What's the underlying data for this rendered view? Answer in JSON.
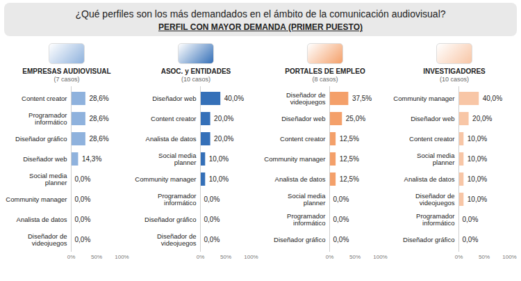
{
  "title": "¿Qué perfiles son los más demandados en el ámbito de la comunicación audiovisual?",
  "subtitle": "PERFIL CON MAYOR DEMANDA (PRIMER PUESTO)",
  "chart_data": [
    {
      "type": "bar",
      "orientation": "horizontal",
      "title": "EMPRESAS AUDIOVISUAL",
      "subtitle": "(7 casos)",
      "categories": [
        "Content creator",
        "Programador informático",
        "Diseñador gráfico",
        "Diseñador web",
        "Social media planner",
        "Community manager",
        "Analista de datos",
        "Diseñador de videojuegos"
      ],
      "values": [
        28.6,
        28.6,
        28.6,
        14.3,
        0,
        0,
        0,
        0
      ],
      "value_labels": [
        "28,6%",
        "28,6%",
        "28,6%",
        "14,3%",
        "0,0%",
        "0,0%",
        "0,0%",
        "0,0%"
      ],
      "color": "#8fb2dd",
      "data_labels": true,
      "xlim": [
        0,
        100
      ],
      "xticks": [
        {
          "value": 0,
          "label": "0%"
        },
        {
          "value": 50,
          "label": "50%"
        },
        {
          "value": 100,
          "label": "100%"
        }
      ]
    },
    {
      "type": "bar",
      "orientation": "horizontal",
      "title": "ASOC. y ENTIDADES",
      "subtitle": "(10 casos)",
      "categories": [
        "Diseñador web",
        "Content creator",
        "Analista de datos",
        "Social media planner",
        "Community manager",
        "Programador informático",
        "Diseñador gráfico",
        "Diseñador de videojuegos"
      ],
      "values": [
        40,
        20,
        20,
        10,
        10,
        0,
        0,
        0
      ],
      "value_labels": [
        "40,0%",
        "20,0%",
        "20,0%",
        "10,0%",
        "10,0%",
        "0,0%",
        "0,0%",
        "0,0%"
      ],
      "color": "#3570b8",
      "data_labels": true,
      "xlim": [
        0,
        100
      ],
      "xticks": [
        {
          "value": 0,
          "label": "0%"
        },
        {
          "value": 50,
          "label": "50%"
        },
        {
          "value": 100,
          "label": "100%"
        }
      ]
    },
    {
      "type": "bar",
      "orientation": "horizontal",
      "title": "PORTALES DE EMPLEO",
      "subtitle": "(8 casos)",
      "categories": [
        "Diseñador de videojuegos",
        "Diseñador web",
        "Content creator",
        "Community manager",
        "Analista de datos",
        "Social media planner",
        "Programador informático",
        "Diseñador gráfico"
      ],
      "values": [
        37.5,
        25,
        12.5,
        12.5,
        12.5,
        0,
        0,
        0
      ],
      "value_labels": [
        "37,5%",
        "25,0%",
        "12,5%",
        "12,5%",
        "12,5%",
        "0,0%",
        "0,0%",
        "0,0%"
      ],
      "color": "#f4a06a",
      "data_labels": true,
      "xlim": [
        0,
        100
      ],
      "xticks": [
        {
          "value": 0,
          "label": "0%"
        },
        {
          "value": 50,
          "label": "50%"
        },
        {
          "value": 100,
          "label": "100%"
        }
      ]
    },
    {
      "type": "bar",
      "orientation": "horizontal",
      "title": "INVESTIGADORES",
      "subtitle": "(10 casos)",
      "categories": [
        "Community manager",
        "Diseñador web",
        "Content creator",
        "Social media planner",
        "Analista de datos",
        "Diseñador de videojuegos",
        "Programador informático",
        "Diseñador gráfico"
      ],
      "values": [
        40,
        20,
        10,
        10,
        10,
        10,
        0,
        0
      ],
      "value_labels": [
        "40,0%",
        "20,0%",
        "10,0%",
        "10,0%",
        "10,0%",
        "10,0%",
        "0,0%",
        "0,0%"
      ],
      "color": "#f8c6a6",
      "data_labels": true,
      "xlim": [
        0,
        100
      ],
      "xticks": [
        {
          "value": 0,
          "label": "0%"
        },
        {
          "value": 50,
          "label": "50%"
        },
        {
          "value": 100,
          "label": "100%"
        }
      ]
    }
  ]
}
